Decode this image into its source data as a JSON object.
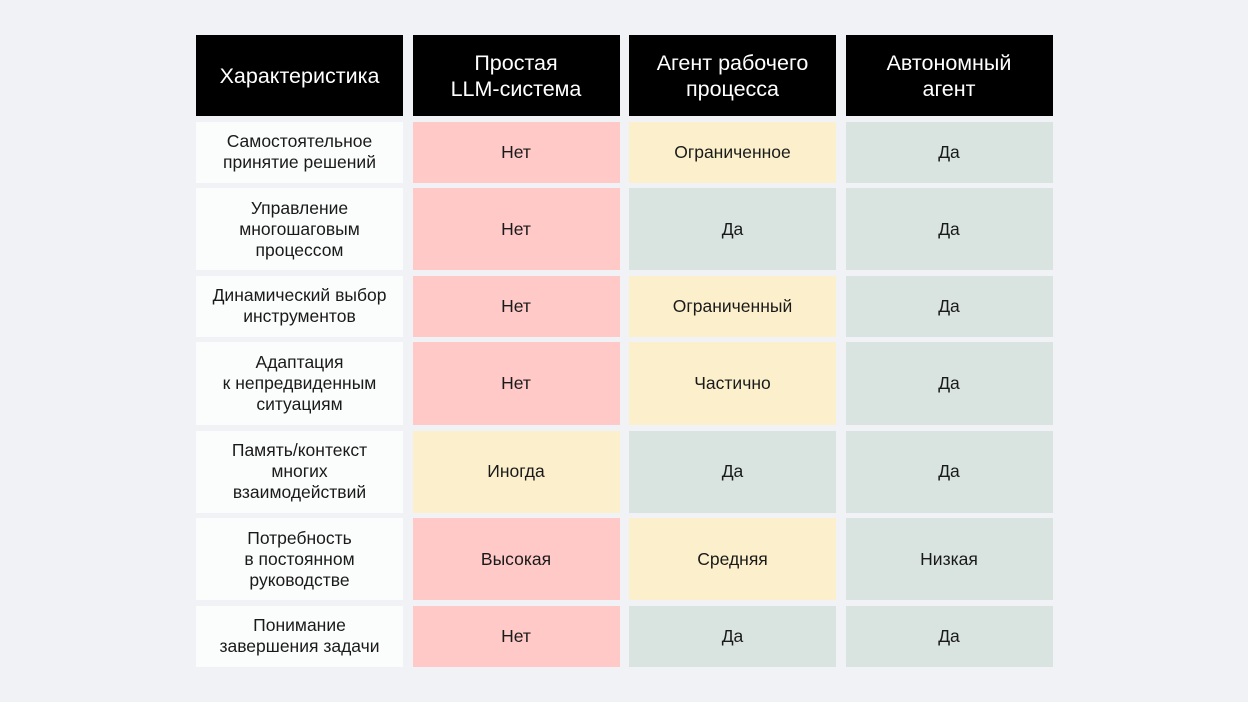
{
  "colors": {
    "no": "#fec9c7",
    "partial": "#fcf0cc",
    "yes": "#d9e4e1",
    "header": "#000000",
    "background": "#f0f2f5"
  },
  "headers": [
    "Характеристика",
    "Простая\nLLM-система",
    "Агент рабочего\nпроцесса",
    "Автономный\nагент"
  ],
  "rows": [
    {
      "feature": "Самостоятельное\nпринятие решений",
      "values": [
        "Нет",
        "Ограниченное",
        "Да"
      ],
      "levels": [
        "red",
        "yellow",
        "green"
      ]
    },
    {
      "feature": "Управление\nмногошаговым\nпроцессом",
      "values": [
        "Нет",
        "Да",
        "Да"
      ],
      "levels": [
        "red",
        "green",
        "green"
      ]
    },
    {
      "feature": "Динамический выбор\nинструментов",
      "values": [
        "Нет",
        "Ограниченный",
        "Да"
      ],
      "levels": [
        "red",
        "yellow",
        "green"
      ]
    },
    {
      "feature": "Адаптация\nк непредвиденным\nситуациям",
      "values": [
        "Нет",
        "Частично",
        "Да"
      ],
      "levels": [
        "red",
        "yellow",
        "green"
      ]
    },
    {
      "feature": "Память/контекст\nмногих\nвзаимодействий",
      "values": [
        "Иногда",
        "Да",
        "Да"
      ],
      "levels": [
        "yellow",
        "green",
        "green"
      ]
    },
    {
      "feature": "Потребность\nв постоянном\nруководстве",
      "values": [
        "Высокая",
        "Средняя",
        "Низкая"
      ],
      "levels": [
        "red",
        "yellow",
        "green"
      ]
    },
    {
      "feature": "Понимание\nзавершения задачи",
      "values": [
        "Нет",
        "Да",
        "Да"
      ],
      "levels": [
        "red",
        "green",
        "green"
      ]
    }
  ]
}
